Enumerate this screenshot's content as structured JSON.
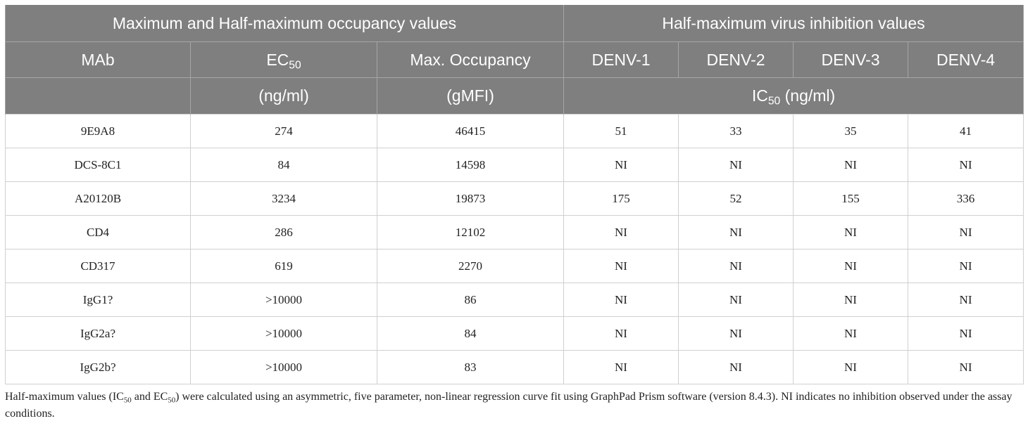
{
  "header": {
    "group_left": "Maximum and Half-maximum occupancy values",
    "group_right": "Half-maximum virus inhibition values",
    "col_mab": "MAb",
    "col_ec_base": "EC",
    "col_ec_sub": "50",
    "col_maxocc": "Max. Occupancy",
    "col_denv1": "DENV-1",
    "col_denv2": "DENV-2",
    "col_denv3": "DENV-3",
    "col_denv4": "DENV-4",
    "unit_ec": "(ng/ml)",
    "unit_maxocc": "(gMFI)",
    "unit_ic_base": "IC",
    "unit_ic_sub": "50",
    "unit_ic_rest": " (ng/ml)"
  },
  "rows": [
    {
      "mab": "9E9A8",
      "ec50": "274",
      "max_occ": "46415",
      "denv1": "51",
      "denv2": "33",
      "denv3": "35",
      "denv4": "41"
    },
    {
      "mab": "DCS-8C1",
      "ec50": "84",
      "max_occ": "14598",
      "denv1": "NI",
      "denv2": "NI",
      "denv3": "NI",
      "denv4": "NI"
    },
    {
      "mab": "A20120B",
      "ec50": "3234",
      "max_occ": "19873",
      "denv1": "175",
      "denv2": "52",
      "denv3": "155",
      "denv4": "336"
    },
    {
      "mab": "CD4",
      "ec50": "286",
      "max_occ": "12102",
      "denv1": "NI",
      "denv2": "NI",
      "denv3": "NI",
      "denv4": "NI"
    },
    {
      "mab": "CD317",
      "ec50": "619",
      "max_occ": "2270",
      "denv1": "NI",
      "denv2": "NI",
      "denv3": "NI",
      "denv4": "NI"
    },
    {
      "mab": "IgG1?",
      "ec50": ">10000",
      "max_occ": "86",
      "denv1": "NI",
      "denv2": "NI",
      "denv3": "NI",
      "denv4": "NI"
    },
    {
      "mab": "IgG2a?",
      "ec50": ">10000",
      "max_occ": "84",
      "denv1": "NI",
      "denv2": "NI",
      "denv3": "NI",
      "denv4": "NI"
    },
    {
      "mab": "IgG2b?",
      "ec50": ">10000",
      "max_occ": "83",
      "denv1": "NI",
      "denv2": "NI",
      "denv3": "NI",
      "denv4": "NI"
    }
  ],
  "footnote": {
    "part1": "Half-maximum values (IC",
    "sub1": "50",
    "part2": " and EC",
    "sub2": "50",
    "part3": ") were calculated using an asymmetric, five parameter, non-linear regression curve fit using GraphPad Prism software (version 8.4.3). NI indicates no inhibition observed under the assay conditions."
  }
}
